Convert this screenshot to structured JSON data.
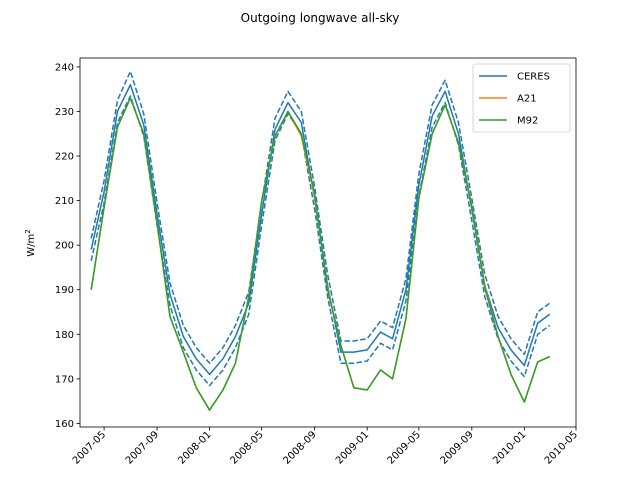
{
  "chart_data": {
    "type": "line",
    "title": "Outgoing longwave all-sky",
    "xlabel": "",
    "ylabel": "W/m",
    "ylabel_superscript": "2",
    "x": [
      "2007-04",
      "2007-05",
      "2007-06",
      "2007-07",
      "2007-08",
      "2007-09",
      "2007-10",
      "2007-11",
      "2007-12",
      "2008-01",
      "2008-02",
      "2008-03",
      "2008-04",
      "2008-05",
      "2008-06",
      "2008-07",
      "2008-08",
      "2008-09",
      "2008-10",
      "2008-11",
      "2008-12",
      "2009-01",
      "2009-02",
      "2009-03",
      "2009-04",
      "2009-05",
      "2009-06",
      "2009-07",
      "2009-08",
      "2009-09",
      "2009-10",
      "2009-11",
      "2009-12",
      "2010-01",
      "2010-02",
      "2010-03"
    ],
    "xticks": [
      "2007-05",
      "2007-09",
      "2008-01",
      "2008-05",
      "2008-09",
      "2009-01",
      "2009-05",
      "2009-09",
      "2010-01",
      "2010-05"
    ],
    "yticks": [
      160,
      170,
      180,
      190,
      200,
      210,
      220,
      230,
      240
    ],
    "ylim": [
      159.2,
      242.0
    ],
    "xlim": [
      "2007-03-06",
      "2010-05-01"
    ],
    "legend_position": "top-right",
    "series": [
      {
        "name": "CERES",
        "color": "#1f77b4",
        "style": "solid",
        "values": [
          199.0,
          212.0,
          230.0,
          236.0,
          227.0,
          207.0,
          189.0,
          179.5,
          174.5,
          171.0,
          174.5,
          179.5,
          187.0,
          207.0,
          226.0,
          232.0,
          227.5,
          210.5,
          191.0,
          176.0,
          176.0,
          176.5,
          180.5,
          179.0,
          190.0,
          213.5,
          229.0,
          234.5,
          225.0,
          208.0,
          191.0,
          181.5,
          176.5,
          173.0,
          182.5,
          184.5
        ]
      },
      {
        "name": "",
        "color": "#1f77b4",
        "style": "dashed",
        "values": [
          201.5,
          214.5,
          232.5,
          239.0,
          229.5,
          209.5,
          191.5,
          182.0,
          177.0,
          173.5,
          177.0,
          182.0,
          189.5,
          209.5,
          228.5,
          234.5,
          230.0,
          213.0,
          193.5,
          178.5,
          178.5,
          179.0,
          183.0,
          181.5,
          192.5,
          216.0,
          231.5,
          237.0,
          227.5,
          210.5,
          193.5,
          184.0,
          179.0,
          175.5,
          185.0,
          187.0
        ]
      },
      {
        "name": "",
        "color": "#1f77b4",
        "style": "dashed",
        "values": [
          196.5,
          209.5,
          227.5,
          233.5,
          224.5,
          204.5,
          186.5,
          177.0,
          172.0,
          168.5,
          172.0,
          177.0,
          184.5,
          204.5,
          223.5,
          229.5,
          225.0,
          208.0,
          188.5,
          173.5,
          173.5,
          174.0,
          178.0,
          176.5,
          187.5,
          211.0,
          226.5,
          232.0,
          222.5,
          205.5,
          188.5,
          179.0,
          174.0,
          170.5,
          180.0,
          182.0
        ]
      },
      {
        "name": "A21",
        "color": "#ff7f0e",
        "style": "solid",
        "values": [
          190.0,
          208.5,
          226.5,
          233.0,
          225.0,
          205.0,
          184.0,
          176.0,
          168.0,
          163.0,
          167.5,
          173.5,
          188.5,
          210.0,
          224.5,
          230.0,
          224.5,
          211.0,
          190.5,
          177.5,
          168.0,
          167.5,
          172.0,
          170.0,
          183.5,
          210.5,
          225.0,
          231.5,
          223.0,
          209.0,
          191.0,
          179.5,
          171.0,
          164.8,
          173.8,
          175.0
        ]
      },
      {
        "name": "M92",
        "color": "#2ca02c",
        "style": "solid",
        "values": [
          190.0,
          208.5,
          226.5,
          233.0,
          225.0,
          205.0,
          184.0,
          176.0,
          168.0,
          163.0,
          167.5,
          173.5,
          188.5,
          210.0,
          224.5,
          230.0,
          225.0,
          211.5,
          190.0,
          177.5,
          168.0,
          167.5,
          172.0,
          170.0,
          183.5,
          210.5,
          225.0,
          231.5,
          223.0,
          208.5,
          190.5,
          179.5,
          171.0,
          164.8,
          173.8,
          175.0
        ]
      }
    ]
  }
}
